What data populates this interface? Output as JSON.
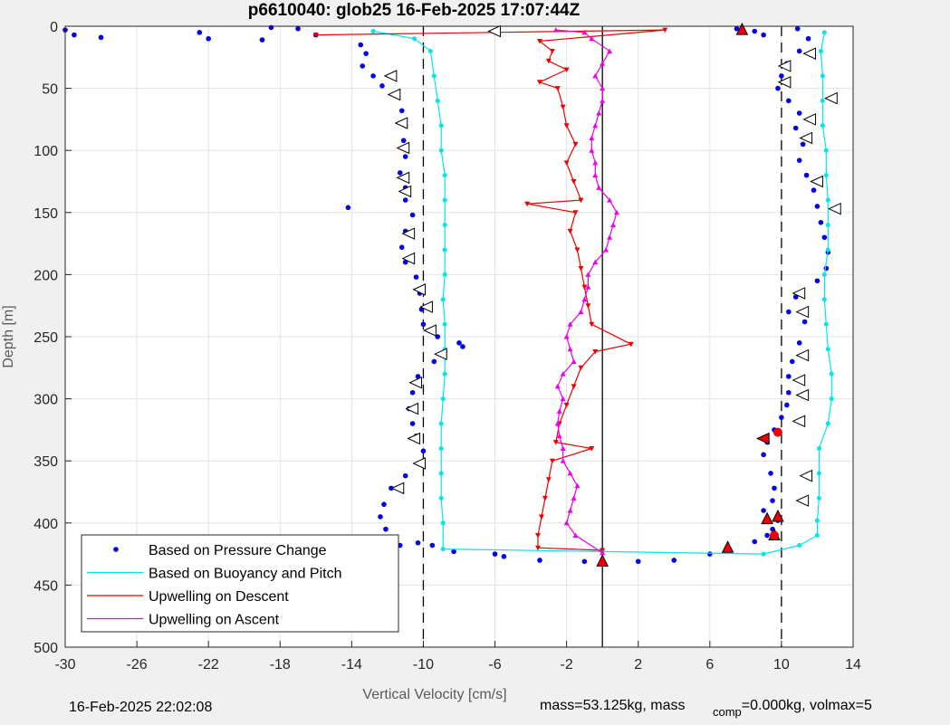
{
  "chart_data": {
    "type": "scatter",
    "title": "p6610040: glob25 16-Feb-2025 17:07:44Z",
    "xlabel": "Vertical Velocity [cm/s]",
    "ylabel": "Depth [m]",
    "xlim": [
      -30,
      14
    ],
    "ylim": [
      0,
      500
    ],
    "y_reversed": true,
    "grid": true,
    "x_ticks": [
      "-30",
      "-26",
      "-22",
      "-18",
      "-14",
      "-10",
      "-6",
      "-2",
      "2",
      "6",
      "10",
      "14"
    ],
    "y_ticks": [
      "0",
      "50",
      "100",
      "150",
      "200",
      "250",
      "300",
      "350",
      "400",
      "450",
      "500"
    ],
    "x_tick_values": [
      -30,
      -26,
      -22,
      -18,
      -14,
      -10,
      -6,
      -2,
      2,
      6,
      10,
      14
    ],
    "y_tick_values": [
      0,
      50,
      100,
      150,
      200,
      250,
      300,
      350,
      400,
      450,
      500
    ],
    "reference_lines": [
      {
        "x": -10,
        "style": "dashed"
      },
      {
        "x": 10,
        "style": "dashed"
      },
      {
        "x": 0,
        "style": "solid"
      }
    ],
    "legend": {
      "placement": "bottom-left",
      "entries": [
        {
          "label": "Based on Pressure Change",
          "color": "#0000ee",
          "marker": "dot"
        },
        {
          "label": "Based on Buoyancy and Pitch",
          "color": "#00e5ee",
          "marker": "line"
        },
        {
          "label": "Upwelling on Descent",
          "color": "#ee0000",
          "marker": "line"
        },
        {
          "label": "Upwelling on Ascent",
          "color": "#ee00ee",
          "marker": "line"
        }
      ]
    },
    "series": [
      {
        "name": "Based on Pressure Change",
        "color": "#0000ee",
        "style": "dots",
        "points": [
          [
            -30,
            3
          ],
          [
            -29.5,
            7
          ],
          [
            -28,
            9
          ],
          [
            -22.5,
            5
          ],
          [
            -22,
            10
          ],
          [
            -19,
            11
          ],
          [
            -18.5,
            1
          ],
          [
            -17,
            2
          ],
          [
            -16,
            7
          ],
          [
            -13.5,
            15
          ],
          [
            -13.2,
            22
          ],
          [
            -13.4,
            32
          ],
          [
            -12.8,
            40
          ],
          [
            -12.3,
            48
          ],
          [
            -11.6,
            55
          ],
          [
            -11.2,
            68
          ],
          [
            -11,
            80
          ],
          [
            -11.1,
            92
          ],
          [
            -11,
            105
          ],
          [
            -11.3,
            118
          ],
          [
            -11,
            130
          ],
          [
            -11,
            140
          ],
          [
            -14.2,
            146
          ],
          [
            -10.6,
            152
          ],
          [
            -11,
            165
          ],
          [
            -11.2,
            178
          ],
          [
            -11,
            190
          ],
          [
            -10.4,
            202
          ],
          [
            -10.2,
            215
          ],
          [
            -10.1,
            228
          ],
          [
            -10,
            240
          ],
          [
            -9.2,
            250
          ],
          [
            -8,
            255
          ],
          [
            -7.8,
            258
          ],
          [
            -8.8,
            262
          ],
          [
            -9.4,
            270
          ],
          [
            -10.3,
            282
          ],
          [
            -10.6,
            295
          ],
          [
            -10.8,
            308
          ],
          [
            -10.6,
            320
          ],
          [
            -10.4,
            330
          ],
          [
            -10,
            342
          ],
          [
            -10.1,
            352
          ],
          [
            -11,
            362
          ],
          [
            -11.8,
            372
          ],
          [
            -12.2,
            385
          ],
          [
            -12.4,
            395
          ],
          [
            -12.1,
            405
          ],
          [
            -12,
            412
          ],
          [
            -12.3,
            420
          ],
          [
            -11.3,
            418
          ],
          [
            -10.3,
            416
          ],
          [
            -9.5,
            418
          ],
          [
            -8.3,
            423
          ],
          [
            -6,
            425
          ],
          [
            -5.5,
            427
          ],
          [
            -3.5,
            430
          ],
          [
            -1,
            431
          ],
          [
            0,
            431
          ],
          [
            2,
            431
          ],
          [
            4,
            430
          ],
          [
            6,
            425
          ],
          [
            7,
            420
          ],
          [
            8.5,
            415
          ],
          [
            9.2,
            410
          ],
          [
            9.5,
            405
          ],
          [
            9.8,
            398
          ],
          [
            9,
            390
          ],
          [
            9.5,
            382
          ],
          [
            9.6,
            372
          ],
          [
            9.4,
            360
          ],
          [
            9,
            345
          ],
          [
            9.2,
            335
          ],
          [
            9.6,
            325
          ],
          [
            10,
            315
          ],
          [
            10.3,
            305
          ],
          [
            10.4,
            295
          ],
          [
            10.4,
            282
          ],
          [
            10.6,
            270
          ],
          [
            11,
            255
          ],
          [
            11.3,
            238
          ],
          [
            10.4,
            230
          ],
          [
            10.8,
            218
          ],
          [
            12,
            205
          ],
          [
            12.5,
            195
          ],
          [
            12.6,
            182
          ],
          [
            12.4,
            170
          ],
          [
            12.2,
            158
          ],
          [
            12,
            145
          ],
          [
            11.8,
            132
          ],
          [
            11.4,
            120
          ],
          [
            11,
            108
          ],
          [
            11.2,
            95
          ],
          [
            10.8,
            82
          ],
          [
            11,
            70
          ],
          [
            10.4,
            60
          ],
          [
            9.8,
            50
          ],
          [
            10,
            40
          ],
          [
            10.3,
            30
          ],
          [
            11,
            20
          ],
          [
            11.5,
            10
          ],
          [
            10.9,
            2
          ],
          [
            7.5,
            2
          ],
          [
            8.5,
            4
          ],
          [
            9,
            7
          ]
        ]
      },
      {
        "name": "Based on Buoyancy and Pitch",
        "color": "#00e5ee",
        "style": "line",
        "points": [
          [
            -12.8,
            4
          ],
          [
            -10.5,
            10
          ],
          [
            -9.6,
            20
          ],
          [
            -9.4,
            40
          ],
          [
            -9.2,
            60
          ],
          [
            -9,
            80
          ],
          [
            -9,
            100
          ],
          [
            -8.8,
            120
          ],
          [
            -8.8,
            140
          ],
          [
            -8.8,
            160
          ],
          [
            -8.8,
            180
          ],
          [
            -8.8,
            200
          ],
          [
            -8.9,
            220
          ],
          [
            -8.8,
            240
          ],
          [
            -8.8,
            260
          ],
          [
            -8.8,
            280
          ],
          [
            -8.9,
            300
          ],
          [
            -9,
            320
          ],
          [
            -9,
            340
          ],
          [
            -9,
            360
          ],
          [
            -9,
            380
          ],
          [
            -8.9,
            400
          ],
          [
            -8.9,
            421
          ],
          [
            0,
            423
          ],
          [
            9,
            425
          ],
          [
            11,
            418
          ],
          [
            12,
            410
          ],
          [
            12,
            398
          ],
          [
            12.1,
            380
          ],
          [
            12.1,
            360
          ],
          [
            12.1,
            340
          ],
          [
            12.6,
            320
          ],
          [
            12.8,
            300
          ],
          [
            12.8,
            280
          ],
          [
            12.6,
            260
          ],
          [
            12.5,
            240
          ],
          [
            12.4,
            220
          ],
          [
            12.4,
            200
          ],
          [
            12.6,
            180
          ],
          [
            12.6,
            160
          ],
          [
            12.6,
            140
          ],
          [
            12.5,
            120
          ],
          [
            12.5,
            100
          ],
          [
            12.3,
            80
          ],
          [
            12.3,
            60
          ],
          [
            12.3,
            40
          ],
          [
            12.2,
            20
          ],
          [
            12.4,
            5
          ]
        ]
      },
      {
        "name": "Upwelling on Descent",
        "color": "#ee0000",
        "style": "line-triangle-down",
        "points": [
          [
            -16,
            7
          ],
          [
            3.5,
            3
          ],
          [
            -3.5,
            12
          ],
          [
            -2.8,
            20
          ],
          [
            -3,
            28
          ],
          [
            -2,
            35
          ],
          [
            -3.5,
            45
          ],
          [
            -2.5,
            50
          ],
          [
            -2.2,
            65
          ],
          [
            -2,
            80
          ],
          [
            -1.5,
            95
          ],
          [
            -2,
            110
          ],
          [
            -1.6,
            125
          ],
          [
            -1.2,
            140
          ],
          [
            -4.2,
            143
          ],
          [
            -1.5,
            150
          ],
          [
            -1.8,
            165
          ],
          [
            -1.4,
            180
          ],
          [
            -1.2,
            195
          ],
          [
            -1,
            210
          ],
          [
            -0.8,
            225
          ],
          [
            -0.6,
            240
          ],
          [
            1.6,
            256
          ],
          [
            -0.4,
            262
          ],
          [
            -1.2,
            275
          ],
          [
            -1.6,
            290
          ],
          [
            -2,
            305
          ],
          [
            -2.4,
            320
          ],
          [
            -2.6,
            335
          ],
          [
            -0.6,
            340
          ],
          [
            -2.8,
            350
          ],
          [
            -3,
            365
          ],
          [
            -3.2,
            380
          ],
          [
            -3.4,
            395
          ],
          [
            -3.6,
            410
          ],
          [
            -3.6,
            420
          ],
          [
            0,
            422
          ]
        ]
      },
      {
        "name": "Upwelling on Ascent",
        "color": "#ee00ee",
        "style": "line-triangle-up",
        "points": [
          [
            0,
            424
          ],
          [
            -1.5,
            410
          ],
          [
            -2,
            400
          ],
          [
            -1.8,
            390
          ],
          [
            -1.6,
            380
          ],
          [
            -1.4,
            370
          ],
          [
            -1.8,
            360
          ],
          [
            -2.2,
            350
          ],
          [
            -2.2,
            340
          ],
          [
            -2.4,
            330
          ],
          [
            -2.5,
            320
          ],
          [
            -2.4,
            310
          ],
          [
            -2.2,
            300
          ],
          [
            -2.5,
            290
          ],
          [
            -2.2,
            280
          ],
          [
            -1.6,
            270
          ],
          [
            -1.8,
            260
          ],
          [
            -2,
            250
          ],
          [
            -1.8,
            240
          ],
          [
            -1.2,
            230
          ],
          [
            -1,
            220
          ],
          [
            -0.8,
            210
          ],
          [
            -0.8,
            200
          ],
          [
            -0.4,
            190
          ],
          [
            0.2,
            180
          ],
          [
            0.4,
            170
          ],
          [
            0.6,
            160
          ],
          [
            0.8,
            150
          ],
          [
            0.4,
            140
          ],
          [
            -0.2,
            130
          ],
          [
            -0.4,
            120
          ],
          [
            -0.4,
            110
          ],
          [
            -0.6,
            100
          ],
          [
            -0.6,
            90
          ],
          [
            -0.4,
            80
          ],
          [
            -0.2,
            70
          ],
          [
            0,
            60
          ],
          [
            0,
            50
          ],
          [
            -0.4,
            40
          ],
          [
            0,
            30
          ],
          [
            0.4,
            20
          ],
          [
            -0.6,
            10
          ],
          [
            -1,
            5
          ],
          [
            -2.6,
            3
          ]
        ]
      }
    ],
    "markers": [
      {
        "type": "triangle-left",
        "fill": "#ffffff",
        "points": [
          [
            -6,
            4
          ],
          [
            -11.8,
            40
          ],
          [
            -11.6,
            55
          ],
          [
            -11.2,
            78
          ],
          [
            -11.1,
            98
          ],
          [
            -11.1,
            122
          ],
          [
            -11,
            133
          ],
          [
            -10.8,
            167
          ],
          [
            -10.8,
            187
          ],
          [
            -10.2,
            212
          ],
          [
            -9.8,
            226
          ],
          [
            -9.6,
            245
          ],
          [
            -9,
            264
          ],
          [
            -10.4,
            287
          ],
          [
            -10.6,
            308
          ],
          [
            -10.5,
            332
          ],
          [
            -10.2,
            352
          ],
          [
            -11.4,
            372
          ],
          [
            11.6,
            22
          ],
          [
            10.2,
            32
          ],
          [
            10.2,
            45
          ],
          [
            12.8,
            58
          ],
          [
            11.6,
            75
          ],
          [
            11.4,
            90
          ],
          [
            12,
            125
          ],
          [
            13,
            147
          ],
          [
            11,
            215
          ],
          [
            11.2,
            230
          ],
          [
            11.2,
            265
          ],
          [
            11,
            285
          ],
          [
            11.2,
            297
          ],
          [
            11,
            318
          ],
          [
            11.4,
            362
          ],
          [
            11.2,
            382
          ]
        ]
      },
      {
        "type": "triangle-up",
        "fill": "#ee0000",
        "points": [
          [
            7.8,
            3
          ],
          [
            0,
            431
          ],
          [
            7,
            420
          ],
          [
            9.8,
            395
          ],
          [
            9.2,
            397
          ],
          [
            9.6,
            410
          ]
        ]
      },
      {
        "type": "triangle-left",
        "fill": "#ee0000",
        "points": [
          [
            -12,
            420
          ],
          [
            9,
            332
          ]
        ]
      },
      {
        "type": "dot",
        "fill": "#ee0000",
        "points": [
          [
            9.8,
            327
          ],
          [
            9.6,
            410
          ]
        ]
      }
    ]
  },
  "footer": {
    "timestamp": "16-Feb-2025 22:02:08",
    "mass_text": "mass=53.125kg, mass",
    "comp_sub": "comp",
    "volmax_text": "=0.000kg, volmax=5"
  }
}
